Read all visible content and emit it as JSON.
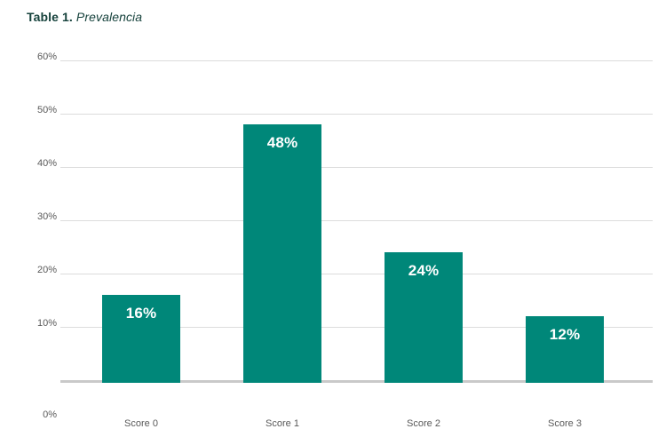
{
  "title": {
    "label": "Table 1.",
    "text": "Prevalencia"
  },
  "chart_data": {
    "type": "bar",
    "title": "Table 1. Prevalencia",
    "categories": [
      "Score 0",
      "Score 1",
      "Score 2",
      "Score 3"
    ],
    "values": [
      16,
      48,
      24,
      12
    ],
    "value_labels": [
      "16%",
      "48%",
      "24%",
      "12%"
    ],
    "xlabel": "",
    "ylabel": "",
    "ylim": [
      0,
      60
    ],
    "ytick_step": 10,
    "yticks": [
      "0%",
      "10%",
      "20%",
      "30%",
      "40%",
      "50%",
      "60%"
    ],
    "grid": true,
    "legend": false,
    "colors": {
      "bar": "#008779",
      "bar_label": "#ffffff",
      "axis_label": "#595959",
      "gridline": "#dcdcdc",
      "baseline": "#c9c9c9",
      "title": "#16423c"
    }
  }
}
